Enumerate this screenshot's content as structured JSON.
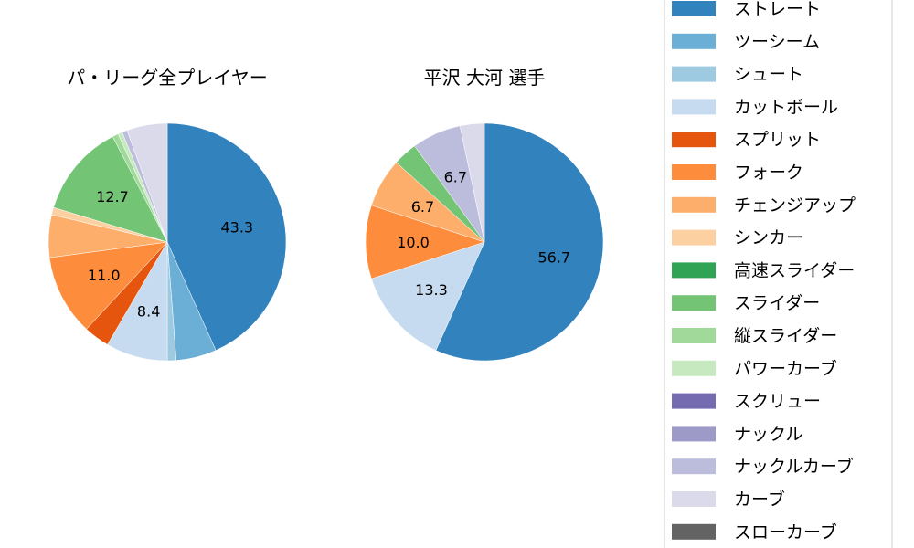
{
  "chart_data": [
    {
      "type": "pie",
      "title": "パ・リーグ全プレイヤー",
      "categories": [
        "ストレート",
        "ツーシーム",
        "シュート",
        "カットボール",
        "スプリット",
        "フォーク",
        "チェンジアップ",
        "シンカー",
        "高速スライダー",
        "スライダー",
        "縦スライダー",
        "パワーカーブ",
        "スクリュー",
        "ナックル",
        "ナックルカーブ",
        "カーブ",
        "スローカーブ"
      ],
      "values": [
        43.3,
        5.5,
        1.2,
        8.4,
        3.5,
        11.0,
        5.8,
        1.0,
        0,
        12.7,
        0.8,
        0.6,
        0,
        0,
        0.7,
        5.5,
        0
      ],
      "data_labels": [
        "43.3",
        "",
        "",
        "8.4",
        "",
        "11.0",
        "",
        "",
        "",
        "12.7",
        "",
        "",
        "",
        "",
        "",
        "",
        ""
      ]
    },
    {
      "type": "pie",
      "title": "平沢 大河  選手",
      "categories": [
        "ストレート",
        "ツーシーム",
        "シュート",
        "カットボール",
        "スプリット",
        "フォーク",
        "チェンジアップ",
        "シンカー",
        "高速スライダー",
        "スライダー",
        "縦スライダー",
        "パワーカーブ",
        "スクリュー",
        "ナックル",
        "ナックルカーブ",
        "カーブ",
        "スローカーブ"
      ],
      "values": [
        56.7,
        0,
        0,
        13.3,
        0,
        10.0,
        6.7,
        0,
        0,
        3.3,
        0,
        0,
        0,
        0,
        6.7,
        3.3,
        0
      ],
      "data_labels": [
        "56.7",
        "",
        "",
        "13.3",
        "",
        "10.0",
        "6.7",
        "",
        "",
        "",
        "",
        "",
        "",
        "",
        "6.7",
        "",
        ""
      ]
    }
  ],
  "legend": {
    "placement": "right",
    "items": [
      "ストレート",
      "ツーシーム",
      "シュート",
      "カットボール",
      "スプリット",
      "フォーク",
      "チェンジアップ",
      "シンカー",
      "高速スライダー",
      "スライダー",
      "縦スライダー",
      "パワーカーブ",
      "スクリュー",
      "ナックル",
      "ナックルカーブ",
      "カーブ",
      "スローカーブ"
    ]
  },
  "colors": [
    "#3182bd",
    "#6baed6",
    "#9ecae1",
    "#c6dbef",
    "#e6550d",
    "#fd8d3c",
    "#fdae6b",
    "#fdd0a2",
    "#31a354",
    "#74c476",
    "#a1d99b",
    "#c7e9c0",
    "#756bb1",
    "#9e9ac8",
    "#bcbddc",
    "#dadaeb",
    "#636363"
  ]
}
